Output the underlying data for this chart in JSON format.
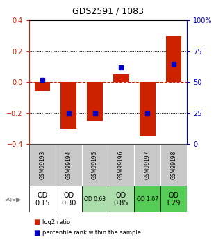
{
  "title": "GDS2591 / 1083",
  "samples": [
    "GSM99193",
    "GSM99194",
    "GSM99195",
    "GSM99196",
    "GSM99197",
    "GSM99198"
  ],
  "log2_ratio": [
    -0.06,
    -0.3,
    -0.25,
    0.05,
    -0.35,
    0.3
  ],
  "percentile_rank": [
    52,
    25,
    25,
    62,
    25,
    65
  ],
  "ylim": [
    -0.4,
    0.4
  ],
  "yticks_left": [
    -0.4,
    -0.2,
    0.0,
    0.2,
    0.4
  ],
  "yticks_right": [
    0,
    25,
    50,
    75,
    100
  ],
  "bar_color": "#cc2200",
  "dot_color": "#0000cc",
  "zero_line_color": "#cc2200",
  "grid_color": "#000000",
  "bg_color": "#ffffff",
  "sample_bg": "#c8c8c8",
  "age_labels": [
    "OD\n0.15",
    "OD\n0.30",
    "OD 0.63",
    "OD\n0.85",
    "OD 1.07",
    "OD\n1.29"
  ],
  "age_bg": [
    "#ffffff",
    "#ffffff",
    "#aaddaa",
    "#aaddaa",
    "#55cc55",
    "#55cc55"
  ],
  "age_large": [
    true,
    true,
    false,
    true,
    false,
    true
  ],
  "legend_red": "log2 ratio",
  "legend_blue": "percentile rank within the sample",
  "left_axis_color": "#cc2200",
  "right_axis_color": "#0000cc"
}
